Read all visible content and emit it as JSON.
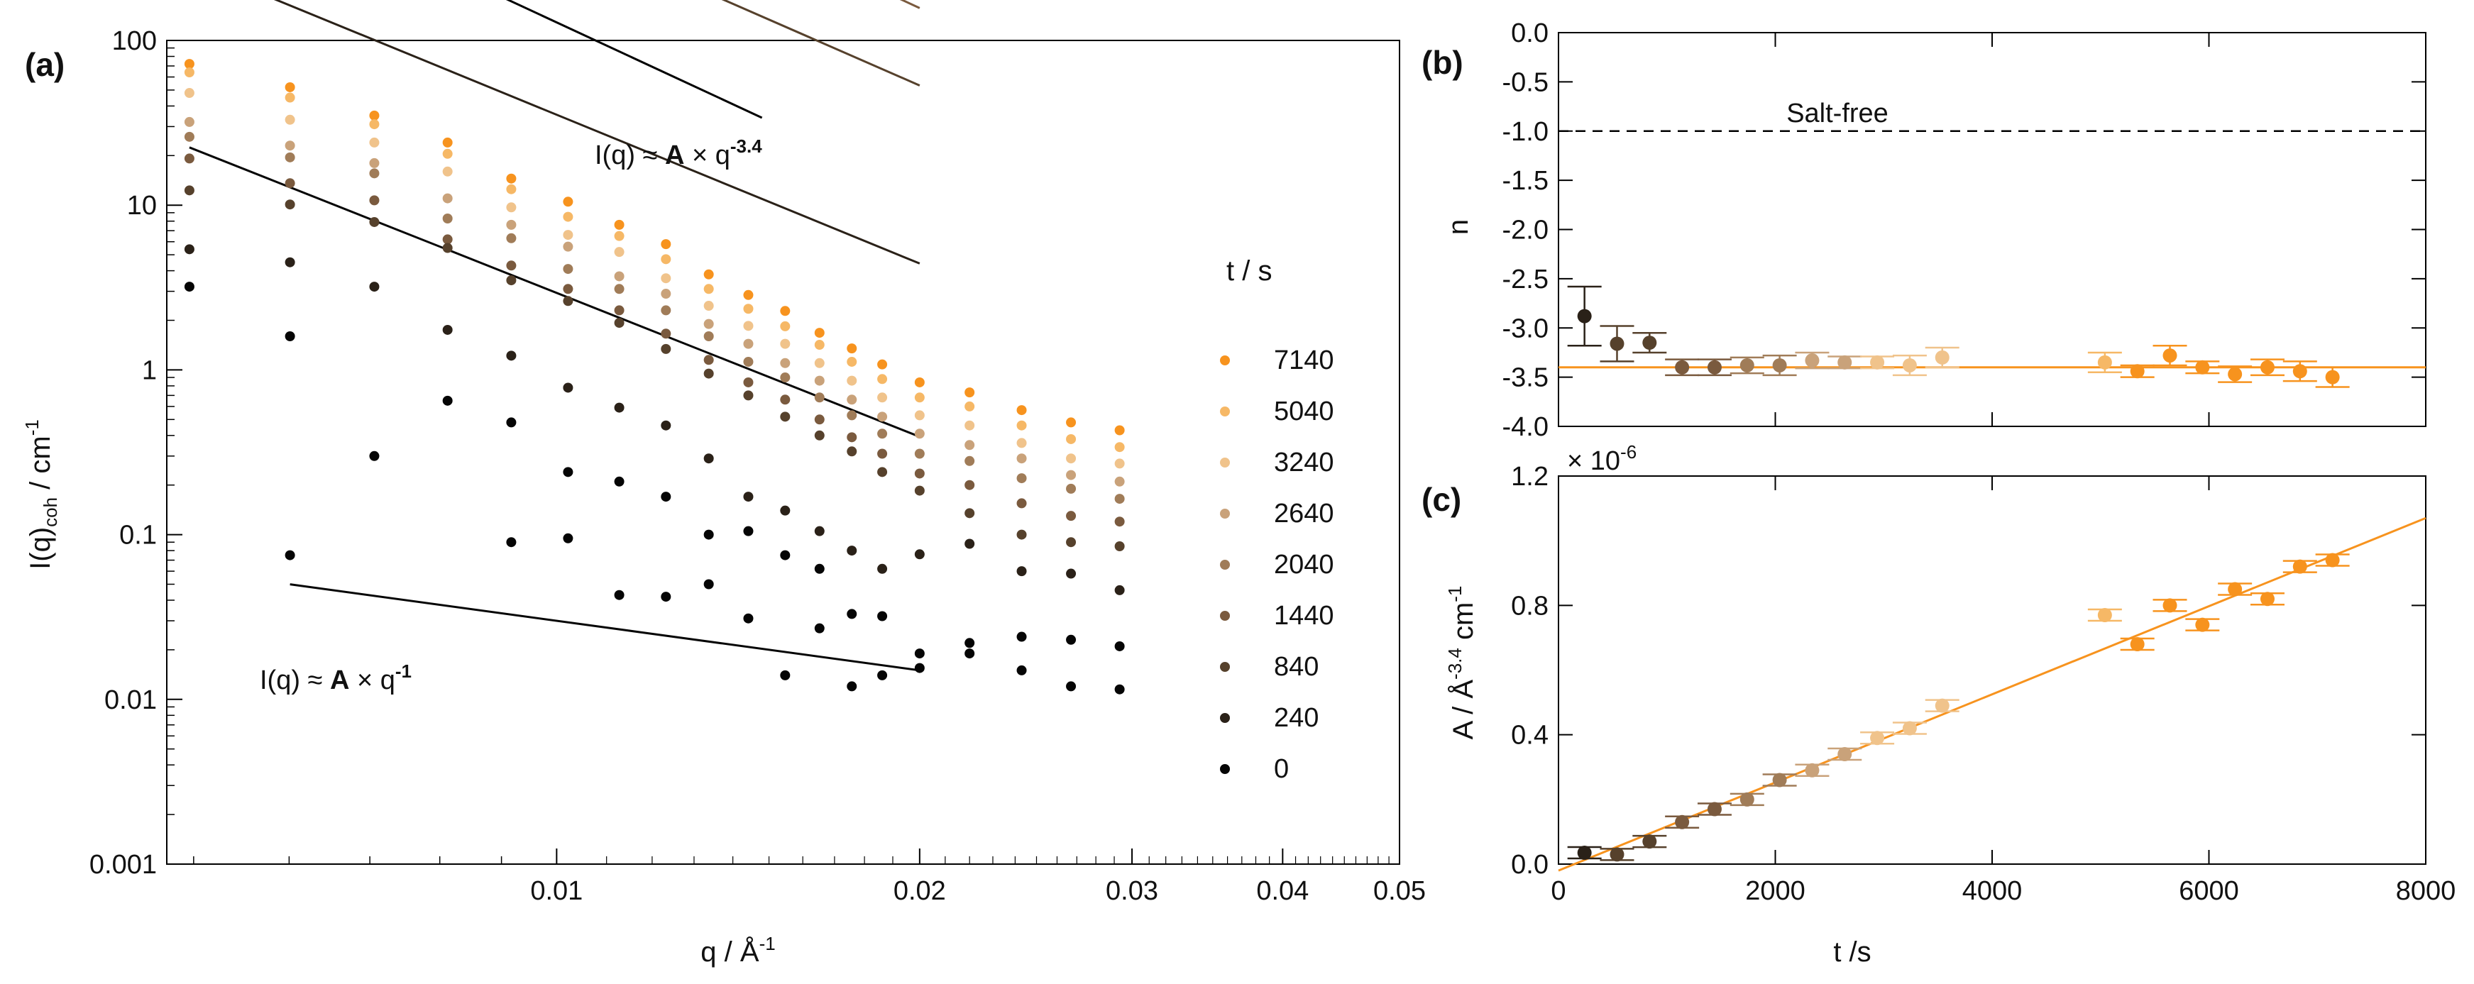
{
  "colors": {
    "t7140": "#f7931e",
    "t5040": "#f6b866",
    "t3240": "#f0c38b",
    "t2640": "#c9a27a",
    "t2040": "#a07c58",
    "t1440": "#7a5a3e",
    "t840": "#56412c",
    "t240": "#2a2118",
    "t0": "#050505",
    "fit_orange": "#f7931e",
    "black": "#000000"
  },
  "chart_data": [
    {
      "panel": "(a)",
      "type": "scatter",
      "xscale": "log",
      "yscale": "log",
      "xlim": [
        0.00475,
        0.05
      ],
      "ylim": [
        0.001,
        100
      ],
      "xlabel_main": "q / Å",
      "xlabel_sup": "-1",
      "ylabel_main": "I(q)",
      "ylabel_sub": "coh",
      "ylabel_rest": " / cm",
      "ylabel_sup": "-1",
      "xticks": [
        {
          "v": 0.01,
          "label": "0.01"
        },
        {
          "v": 0.02,
          "label": "0.02"
        },
        {
          "v": 0.03,
          "label": "0.03"
        },
        {
          "v": 0.04,
          "label": "0.04"
        },
        {
          "v": 0.05,
          "label": "0.05"
        }
      ],
      "yticks": [
        {
          "v": 0.001,
          "label": "0.001"
        },
        {
          "v": 0.01,
          "label": "0.01"
        },
        {
          "v": 0.1,
          "label": "0.1"
        },
        {
          "v": 1,
          "label": "1"
        },
        {
          "v": 10,
          "label": "10"
        },
        {
          "v": 100,
          "label": "100"
        }
      ],
      "x": [
        0.00496,
        0.00601,
        0.00706,
        0.00812,
        0.00917,
        0.01022,
        0.01127,
        0.01232,
        0.01337,
        0.01442,
        0.01547,
        0.01652,
        0.01757,
        0.01862,
        0.02,
        0.022,
        0.0243,
        0.0267,
        0.0293
      ],
      "legend_title": "t / s",
      "legend": [
        "7140",
        "5040",
        "3240",
        "2640",
        "2040",
        "1440",
        "840",
        "240",
        "0"
      ],
      "series": [
        {
          "name": "7140",
          "values": [
            72,
            52,
            35,
            24,
            14.5,
            10.5,
            7.6,
            5.8,
            3.8,
            2.85,
            2.28,
            1.68,
            1.35,
            1.08,
            0.84,
            0.73,
            0.57,
            0.48,
            0.43
          ]
        },
        {
          "name": "5040",
          "values": [
            64,
            45,
            31,
            20.5,
            12.5,
            8.5,
            6.5,
            4.7,
            3.1,
            2.35,
            1.84,
            1.42,
            1.12,
            0.88,
            0.68,
            0.6,
            0.46,
            0.38,
            0.34
          ]
        },
        {
          "name": "3240",
          "values": [
            48,
            33,
            24,
            16,
            9.7,
            6.6,
            5.2,
            3.6,
            2.45,
            1.85,
            1.44,
            1.1,
            0.86,
            0.68,
            0.53,
            0.46,
            0.36,
            0.29,
            0.27
          ]
        },
        {
          "name": "2640",
          "values": [
            32,
            23,
            18,
            11,
            7.6,
            5.6,
            3.7,
            2.9,
            1.9,
            1.44,
            1.1,
            0.86,
            0.66,
            0.52,
            0.41,
            0.35,
            0.29,
            0.23,
            0.21
          ]
        },
        {
          "name": "2040",
          "values": [
            26,
            19.5,
            15.6,
            8.3,
            6.3,
            4.1,
            3.1,
            2.3,
            1.6,
            1.12,
            0.9,
            0.68,
            0.53,
            0.41,
            0.31,
            0.28,
            0.22,
            0.19,
            0.165
          ]
        },
        {
          "name": "1440",
          "values": [
            19.2,
            13.6,
            10.7,
            6.2,
            4.3,
            3.1,
            2.3,
            1.66,
            1.15,
            0.84,
            0.66,
            0.5,
            0.39,
            0.31,
            0.235,
            0.2,
            0.155,
            0.13,
            0.12
          ]
        },
        {
          "name": "840",
          "values": [
            12.3,
            10.1,
            7.9,
            5.5,
            3.5,
            2.62,
            1.93,
            1.34,
            0.95,
            0.7,
            0.52,
            0.4,
            0.32,
            0.24,
            0.185,
            0.135,
            0.1,
            0.09,
            0.085
          ]
        },
        {
          "name": "240",
          "values": [
            5.4,
            4.5,
            3.2,
            1.75,
            1.22,
            0.78,
            0.59,
            0.46,
            0.29,
            0.17,
            0.14,
            0.105,
            0.08,
            0.062,
            0.076,
            0.088,
            0.06,
            0.058,
            0.046
          ]
        },
        {
          "name": "0",
          "values": [
            3.2,
            1.6,
            0.3,
            0.65,
            0.48,
            0.24,
            0.21,
            0.17,
            0.1,
            0.105,
            0.075,
            0.062,
            0.033,
            0.032,
            0.019,
            0.022,
            0.024,
            0.023,
            0.021
          ]
        },
        {
          "name": "0-low",
          "values": [
            null,
            0.075,
            null,
            null,
            0.09,
            0.095,
            0.043,
            0.042,
            0.05,
            0.031,
            0.014,
            0.027,
            0.012,
            0.014,
            0.0155,
            0.019,
            0.015,
            0.012,
            0.0115
          ]
        }
      ],
      "fits": [
        {
          "name": "7140",
          "A": 0.000945,
          "n": -3.4,
          "xrange": [
            0.00496,
            0.02
          ]
        },
        {
          "name": "5040",
          "A": 0.00078,
          "n": -3.4,
          "xrange": [
            0.00496,
            0.02
          ]
        },
        {
          "name": "3240",
          "A": 0.00059,
          "n": -3.4,
          "xrange": [
            0.00496,
            0.02
          ]
        },
        {
          "name": "2640",
          "A": 0.000455,
          "n": -3.4,
          "xrange": [
            0.00496,
            0.02
          ]
        },
        {
          "name": "2040",
          "A": 0.00035,
          "n": -3.4,
          "xrange": [
            0.00496,
            0.02
          ]
        },
        {
          "name": "1440",
          "A": 0.000263,
          "n": -3.4,
          "xrange": [
            0.00496,
            0.02
          ]
        },
        {
          "name": "840",
          "A": 0.000195,
          "n": -3.2,
          "xrange": [
            0.00496,
            0.02
          ]
        },
        {
          "name": "240",
          "A": 3.54e-05,
          "n": -3.0,
          "xrange": [
            0.00496,
            0.02
          ]
        },
        {
          "name": "0",
          "A": 4.65e-06,
          "n": -2.9,
          "xrange": [
            0.00496,
            0.02
          ]
        },
        {
          "name": "0-low",
          "A": 0.0003,
          "n": -1.0,
          "xrange": [
            0.00601,
            0.02
          ]
        }
      ],
      "reference_line": {
        "A": 2.04e-05,
        "n": -3.4,
        "xrange": [
          0.0067,
          0.0148
        ]
      },
      "annotations": {
        "upper_prefix": "I(q) ≈ ",
        "upper_bold": "A",
        "upper_mid": " × q",
        "upper_sup": "-3.4",
        "lower_prefix": "I(q) ≈ ",
        "lower_bold": "A",
        "lower_mid": " × q",
        "lower_sup": "-1"
      }
    },
    {
      "panel": "(b)",
      "type": "scatter",
      "xlim": [
        0,
        8000
      ],
      "ylim": [
        -4.0,
        0.0
      ],
      "ylabel": "n",
      "yticks": [
        {
          "v": 0.0,
          "label": "0.0"
        },
        {
          "v": -0.5,
          "label": "-0.5"
        },
        {
          "v": -1.0,
          "label": "-1.0"
        },
        {
          "v": -1.5,
          "label": "-1.5"
        },
        {
          "v": -2.0,
          "label": "-2.0"
        },
        {
          "v": -2.5,
          "label": "-2.5"
        },
        {
          "v": -3.0,
          "label": "-3.0"
        },
        {
          "v": -3.5,
          "label": "-3.5"
        },
        {
          "v": -4.0,
          "label": "-4.0"
        }
      ],
      "xticks": [
        0,
        2000,
        4000,
        6000,
        8000
      ],
      "reference_value": -1.0,
      "reference_label": "Salt-free",
      "fit_value": -3.4,
      "points": [
        {
          "t": 240,
          "n": -2.88,
          "err": 0.3
        },
        {
          "t": 540,
          "n": -3.16,
          "err": 0.18
        },
        {
          "t": 840,
          "n": -3.15,
          "err": 0.1
        },
        {
          "t": 1140,
          "n": -3.4,
          "err": 0.08
        },
        {
          "t": 1440,
          "n": -3.4,
          "err": 0.08
        },
        {
          "t": 1740,
          "n": -3.38,
          "err": 0.08
        },
        {
          "t": 2040,
          "n": -3.38,
          "err": 0.1
        },
        {
          "t": 2340,
          "n": -3.33,
          "err": 0.08
        },
        {
          "t": 2640,
          "n": -3.35,
          "err": 0.06
        },
        {
          "t": 2940,
          "n": -3.35,
          "err": 0.06
        },
        {
          "t": 3240,
          "n": -3.38,
          "err": 0.1
        },
        {
          "t": 3540,
          "n": -3.3,
          "err": 0.1
        },
        {
          "t": 5040,
          "n": -3.35,
          "err": 0.1
        },
        {
          "t": 5340,
          "n": -3.44,
          "err": 0.06
        },
        {
          "t": 5640,
          "n": -3.28,
          "err": 0.1
        },
        {
          "t": 5940,
          "n": -3.4,
          "err": 0.06
        },
        {
          "t": 6240,
          "n": -3.47,
          "err": 0.08
        },
        {
          "t": 6540,
          "n": -3.4,
          "err": 0.08
        },
        {
          "t": 6840,
          "n": -3.44,
          "err": 0.1
        },
        {
          "t": 7140,
          "n": -3.5,
          "err": 0.1
        }
      ]
    },
    {
      "panel": "(c)",
      "type": "scatter",
      "xlim": [
        0,
        8000
      ],
      "ylim": [
        0.0,
        1.2
      ],
      "xlabel": "t /s",
      "ylabel_main": "A / Å",
      "ylabel_sup": "-3.4",
      "ylabel_rest": " cm",
      "ylabel_sup2": "-1",
      "multiplier": "× 10",
      "multiplier_exp": "-6",
      "yticks": [
        {
          "v": 0.0,
          "label": "0.0"
        },
        {
          "v": 0.4,
          "label": "0.4"
        },
        {
          "v": 0.8,
          "label": "0.8"
        },
        {
          "v": 1.2,
          "label": "1.2"
        }
      ],
      "xticks": [
        {
          "v": 0,
          "label": "0"
        },
        {
          "v": 2000,
          "label": "2000"
        },
        {
          "v": 4000,
          "label": "4000"
        },
        {
          "v": 6000,
          "label": "6000"
        },
        {
          "v": 8000,
          "label": "8000"
        }
      ],
      "fit_line": {
        "x": [
          0,
          8000
        ],
        "y": [
          -0.02,
          1.07
        ]
      },
      "points": [
        {
          "t": 240,
          "A": 0.035
        },
        {
          "t": 540,
          "A": 0.03
        },
        {
          "t": 840,
          "A": 0.07
        },
        {
          "t": 1140,
          "A": 0.13
        },
        {
          "t": 1440,
          "A": 0.17
        },
        {
          "t": 1740,
          "A": 0.2
        },
        {
          "t": 2040,
          "A": 0.26
        },
        {
          "t": 2340,
          "A": 0.29
        },
        {
          "t": 2640,
          "A": 0.34
        },
        {
          "t": 2940,
          "A": 0.39
        },
        {
          "t": 3240,
          "A": 0.42
        },
        {
          "t": 3540,
          "A": 0.49
        },
        {
          "t": 5040,
          "A": 0.77
        },
        {
          "t": 5340,
          "A": 0.68
        },
        {
          "t": 5640,
          "A": 0.8
        },
        {
          "t": 5940,
          "A": 0.74
        },
        {
          "t": 6240,
          "A": 0.85
        },
        {
          "t": 6540,
          "A": 0.82
        },
        {
          "t": 6840,
          "A": 0.92
        },
        {
          "t": 7140,
          "A": 0.94
        }
      ]
    }
  ]
}
